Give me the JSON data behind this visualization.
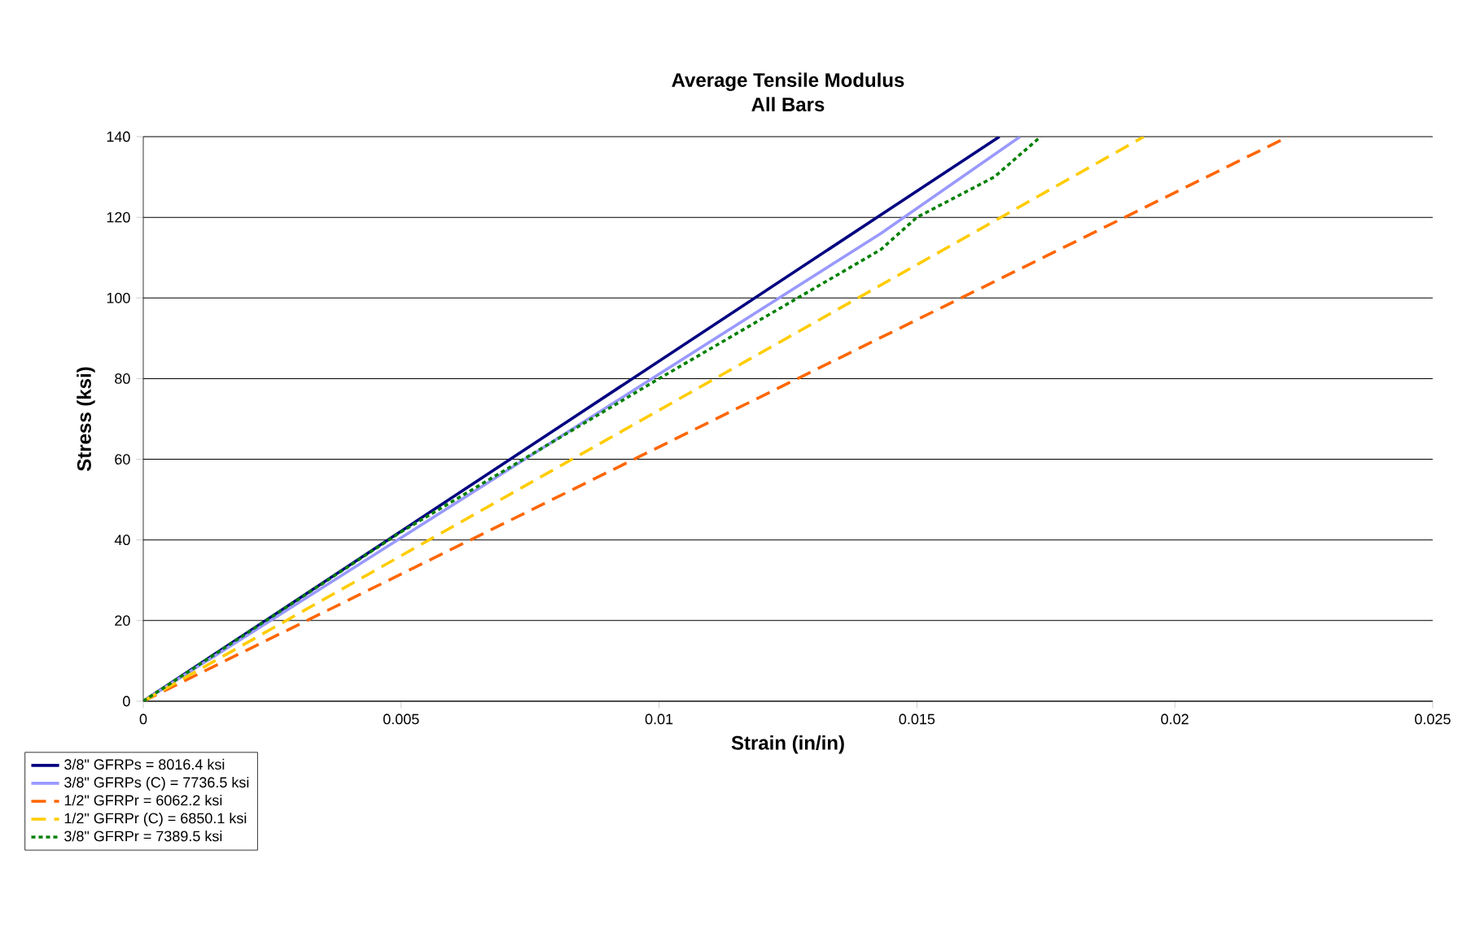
{
  "chart_data": {
    "type": "line",
    "title": "Average Tensile Modulus",
    "subtitle": "All Bars",
    "xlabel": "Strain (in/in)",
    "ylabel": "Stress (ksi)",
    "xlim": [
      0,
      0.025
    ],
    "ylim": [
      0,
      140
    ],
    "xticks": [
      0,
      0.005,
      0.01,
      0.015,
      0.02,
      0.025
    ],
    "yticks": [
      0,
      20,
      40,
      60,
      80,
      100,
      120,
      140
    ],
    "grid": "y",
    "legend": "bottom left",
    "series": [
      {
        "name": "3/8\" GFRPs = 8016.4 ksi",
        "color": "#000080",
        "line_style": "solid",
        "x": [
          0,
          0.0166
        ],
        "values": [
          0,
          140
        ]
      },
      {
        "name": "3/8\" GFRPs (C) = 7736.5 ksi",
        "color": "#9999ff",
        "line_style": "solid",
        "x": [
          0,
          0.0143,
          0.017
        ],
        "values": [
          0,
          116,
          140
        ]
      },
      {
        "name": "1/2\" GFRPr = 6062.2 ksi",
        "color": "#ff6600",
        "line_style": "dashed",
        "x": [
          0,
          0.0222
        ],
        "values": [
          0,
          140
        ]
      },
      {
        "name": "1/2\" GFRPr (C) = 6850.1 ksi",
        "color": "#ffcc00",
        "line_style": "dashed",
        "x": [
          0,
          0.0194
        ],
        "values": [
          0,
          140
        ]
      },
      {
        "name": "3/8\" GFRPr = 7389.5 ksi",
        "color": "#008000",
        "line_style": "dotted",
        "x": [
          0,
          0.005,
          0.01,
          0.0143,
          0.015,
          0.0165,
          0.0174
        ],
        "values": [
          0,
          42,
          80,
          112,
          120,
          130,
          140
        ]
      }
    ]
  }
}
